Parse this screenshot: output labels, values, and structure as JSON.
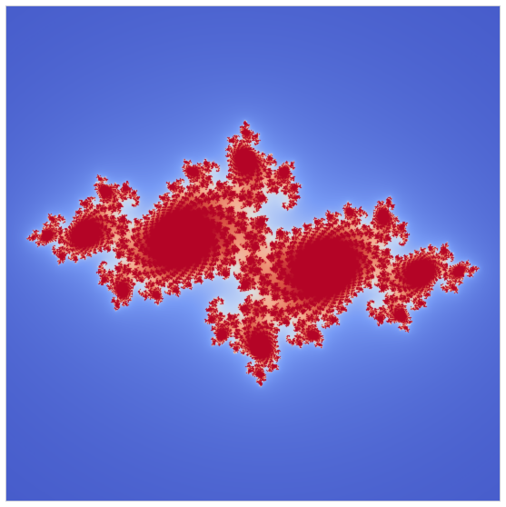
{
  "image": {
    "subject": "julia-set-fractal",
    "colormap": "coolwarm"
  },
  "fractal": {
    "c_real": -0.7269,
    "c_imag": 0.1889,
    "max_iterations": 160,
    "view_real_range": [
      -1.62,
      1.62
    ],
    "view_imag_range": [
      -1.62,
      1.62
    ]
  },
  "colors": {
    "background": "#3a4fc4",
    "halo": "#7f9ef5",
    "edge": "#dfe6f5",
    "warm_mid": "#f5a784",
    "core": "#b40426"
  }
}
